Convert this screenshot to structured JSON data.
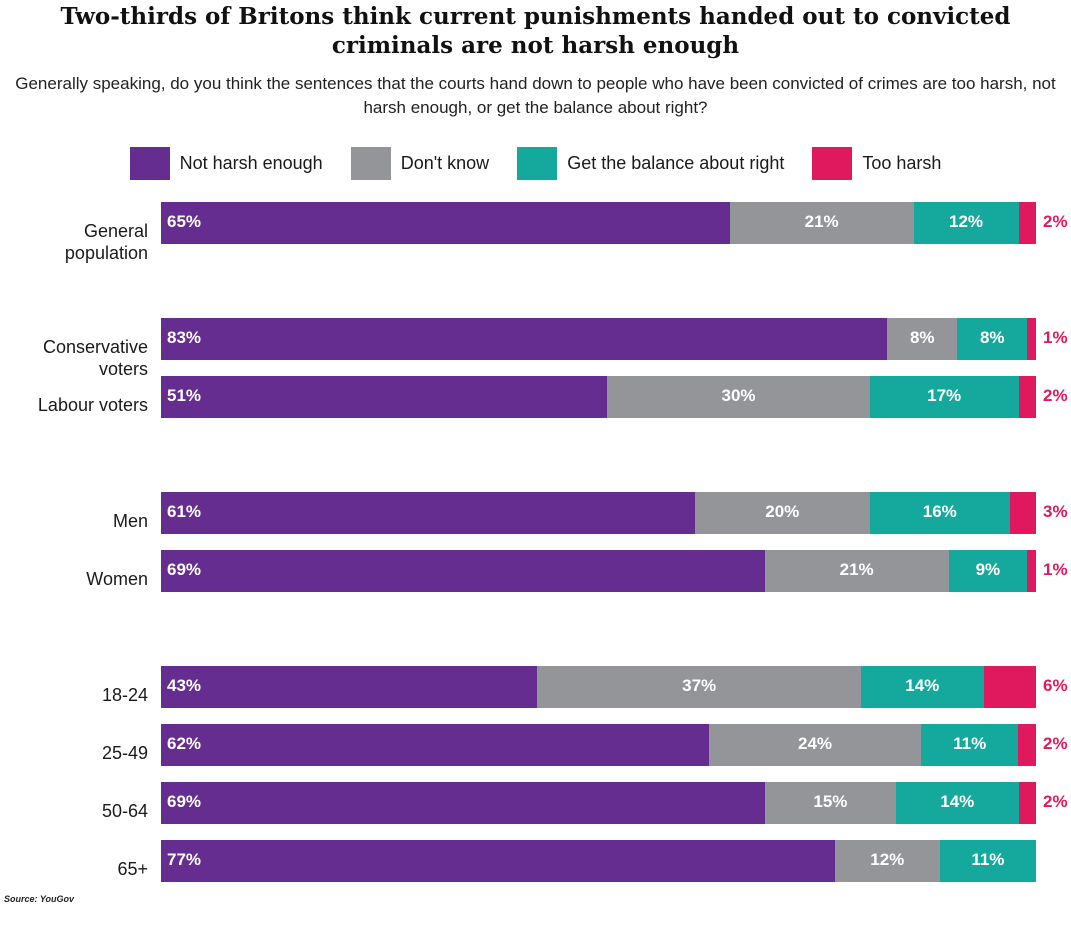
{
  "chart_data": {
    "type": "bar",
    "orientation": "horizontal",
    "stacked": true,
    "title": "Two-thirds of Britons think current punishments handed out to convicted criminals are not harsh enough",
    "subtitle": "Generally speaking, do you think the sentences that the courts hand down to people who have been convicted of crimes are too harsh, not harsh enough, or get the balance about right?",
    "legend_position": "top",
    "grid": false,
    "xlim": [
      0,
      100
    ],
    "categories": [
      "General population",
      "Conservative voters",
      "Labour voters",
      "Men",
      "Women",
      "18-24",
      "25-49",
      "50-64",
      "65+"
    ],
    "series": [
      {
        "name": "Not harsh enough",
        "color": "#652d90",
        "values": [
          65,
          83,
          51,
          61,
          69,
          43,
          62,
          69,
          77
        ],
        "labels": [
          "65%",
          "83%",
          "51%",
          "61%",
          "69%",
          "43%",
          "62%",
          "69%",
          "77%"
        ]
      },
      {
        "name": "Don't know",
        "color": "#939598",
        "values": [
          21,
          8,
          30,
          20,
          21,
          37,
          24,
          15,
          12
        ],
        "labels": [
          "21%",
          "8%",
          "30%",
          "20%",
          "21%",
          "37%",
          "24%",
          "15%",
          "12%"
        ]
      },
      {
        "name": "Get the balance about right",
        "color": "#15a99e",
        "values": [
          12,
          8,
          17,
          16,
          9,
          14,
          11,
          14,
          11
        ],
        "labels": [
          "12%",
          "8%",
          "17%",
          "16%",
          "9%",
          "14%",
          "11%",
          "14%",
          "11%"
        ]
      },
      {
        "name": "Too harsh",
        "color": "#e0195f",
        "values": [
          2,
          1,
          2,
          3,
          1,
          6,
          2,
          2,
          0
        ],
        "labels": [
          "2%",
          "1%",
          "2%",
          "3%",
          "1%",
          "6%",
          "2%",
          "2%",
          ""
        ]
      }
    ],
    "source": "Source: YouGov"
  }
}
